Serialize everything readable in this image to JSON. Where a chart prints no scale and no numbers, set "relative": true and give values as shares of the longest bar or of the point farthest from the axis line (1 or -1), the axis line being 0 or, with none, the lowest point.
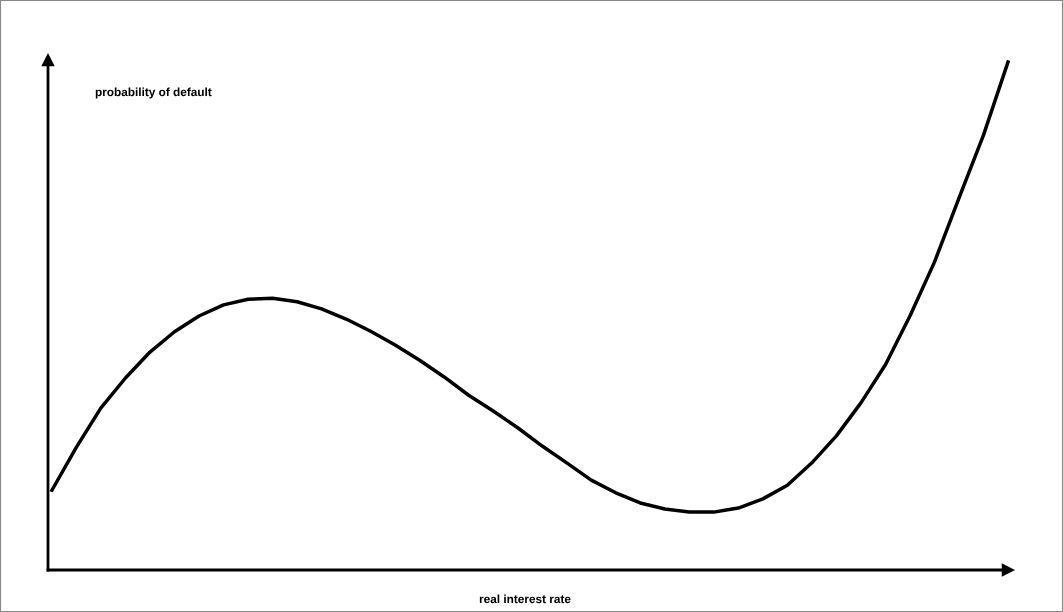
{
  "chart_data": {
    "type": "line",
    "relative": true,
    "xlabel": "real interest rate",
    "ylabel": "probability of default",
    "categories": [
      null,
      null,
      null,
      null,
      null,
      null,
      null,
      null,
      null,
      null,
      null,
      null,
      null,
      null,
      null,
      null,
      null,
      null,
      null,
      null,
      null,
      null,
      null,
      null,
      null,
      null,
      null,
      null,
      null,
      null,
      null,
      null,
      null,
      null,
      null,
      null,
      null,
      null,
      null,
      null
    ],
    "series": [
      {
        "color": "#000000",
        "values": [
          0.157,
          0.242,
          0.319,
          0.378,
          0.429,
          0.469,
          0.5,
          0.522,
          0.533,
          0.535,
          0.528,
          0.514,
          0.494,
          0.47,
          0.443,
          0.413,
          0.38,
          0.344,
          0.313,
          0.28,
          0.244,
          0.211,
          0.177,
          0.152,
          0.132,
          0.12,
          0.114,
          0.114,
          0.122,
          0.14,
          0.167,
          0.211,
          0.264,
          0.329,
          0.404,
          0.5,
          0.606,
          0.732,
          0.856,
          1
        ]
      }
    ],
    "grid": false,
    "legend": false,
    "marker": "none",
    "line_style": "solid"
  }
}
